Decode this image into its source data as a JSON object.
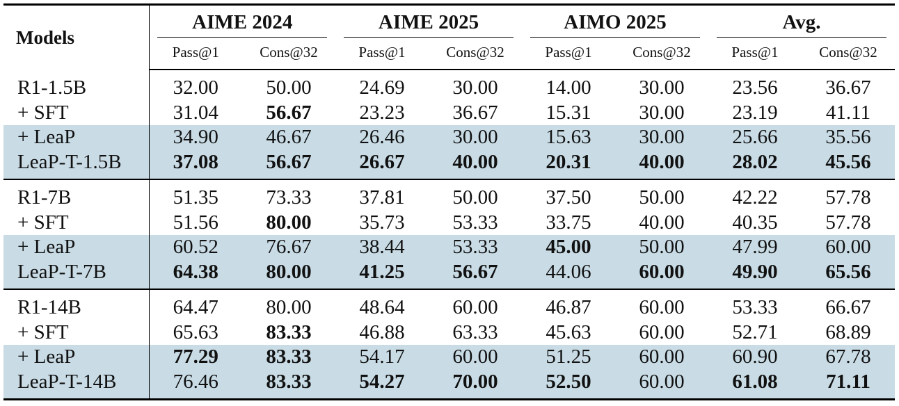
{
  "table": {
    "models_header": "Models",
    "groups": [
      "AIME 2024",
      "AIME 2025",
      "AIMO 2025",
      "Avg."
    ],
    "subheaders": [
      "Pass@1",
      "Cons@32"
    ],
    "blocks": [
      {
        "rows": [
          {
            "model": "R1-1.5B",
            "shaded": false,
            "values": [
              "32.00",
              "50.00",
              "24.69",
              "30.00",
              "14.00",
              "30.00",
              "23.56",
              "36.67"
            ],
            "bold": []
          },
          {
            "model": "+ SFT",
            "shaded": false,
            "values": [
              "31.04",
              "56.67",
              "23.23",
              "36.67",
              "15.31",
              "30.00",
              "23.19",
              "41.11"
            ],
            "bold": [
              1
            ]
          },
          {
            "model": "+ LeaP",
            "shaded": true,
            "values": [
              "34.90",
              "46.67",
              "26.46",
              "30.00",
              "15.63",
              "30.00",
              "25.66",
              "35.56"
            ],
            "bold": []
          },
          {
            "model": "LeaP-T-1.5B",
            "shaded": true,
            "values": [
              "37.08",
              "56.67",
              "26.67",
              "40.00",
              "20.31",
              "40.00",
              "28.02",
              "45.56"
            ],
            "bold": [
              0,
              1,
              2,
              3,
              4,
              5,
              6,
              7
            ]
          }
        ]
      },
      {
        "rows": [
          {
            "model": "R1-7B",
            "shaded": false,
            "values": [
              "51.35",
              "73.33",
              "37.81",
              "50.00",
              "37.50",
              "50.00",
              "42.22",
              "57.78"
            ],
            "bold": []
          },
          {
            "model": "+ SFT",
            "shaded": false,
            "values": [
              "51.56",
              "80.00",
              "35.73",
              "53.33",
              "33.75",
              "40.00",
              "40.35",
              "57.78"
            ],
            "bold": [
              1
            ]
          },
          {
            "model": "+ LeaP",
            "shaded": true,
            "values": [
              "60.52",
              "76.67",
              "38.44",
              "53.33",
              "45.00",
              "50.00",
              "47.99",
              "60.00"
            ],
            "bold": [
              4
            ]
          },
          {
            "model": "LeaP-T-7B",
            "shaded": true,
            "values": [
              "64.38",
              "80.00",
              "41.25",
              "56.67",
              "44.06",
              "60.00",
              "49.90",
              "65.56"
            ],
            "bold": [
              0,
              1,
              2,
              3,
              5,
              6,
              7
            ]
          }
        ]
      },
      {
        "rows": [
          {
            "model": "R1-14B",
            "shaded": false,
            "values": [
              "64.47",
              "80.00",
              "48.64",
              "60.00",
              "46.87",
              "60.00",
              "53.33",
              "66.67"
            ],
            "bold": []
          },
          {
            "model": "+ SFT",
            "shaded": false,
            "values": [
              "65.63",
              "83.33",
              "46.88",
              "63.33",
              "45.63",
              "60.00",
              "52.71",
              "68.89"
            ],
            "bold": [
              1
            ]
          },
          {
            "model": "+ LeaP",
            "shaded": true,
            "values": [
              "77.29",
              "83.33",
              "54.17",
              "60.00",
              "51.25",
              "60.00",
              "60.90",
              "67.78"
            ],
            "bold": [
              0,
              1
            ]
          },
          {
            "model": "LeaP-T-14B",
            "shaded": true,
            "values": [
              "76.46",
              "83.33",
              "54.27",
              "70.00",
              "52.50",
              "60.00",
              "61.08",
              "71.11"
            ],
            "bold": [
              1,
              2,
              3,
              4,
              6,
              7
            ]
          }
        ]
      }
    ],
    "colors": {
      "highlight_row": "#c9dce6",
      "rule": "#000000"
    }
  }
}
